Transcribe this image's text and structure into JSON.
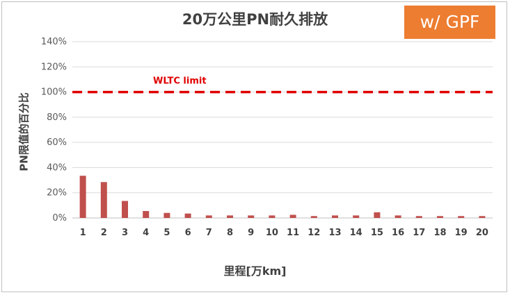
{
  "chart_data": {
    "type": "bar",
    "title": "20万公里PN耐久排放",
    "badge": "w/ GPF",
    "xlabel": "里程[万km]",
    "ylabel": "PN限值的百分比",
    "categories": [
      "1",
      "2",
      "3",
      "4",
      "5",
      "6",
      "7",
      "8",
      "9",
      "10",
      "11",
      "12",
      "13",
      "14",
      "15",
      "16",
      "17",
      "18",
      "19",
      "20"
    ],
    "values": [
      33.5,
      28.5,
      13.5,
      5.5,
      4,
      3.5,
      2,
      2,
      2,
      2,
      2.5,
      1.5,
      2,
      2,
      4.5,
      2,
      1.5,
      1.5,
      1.5,
      1.5
    ],
    "ylim": [
      0,
      140
    ],
    "yticks": [
      0,
      20,
      40,
      60,
      80,
      100,
      120,
      140
    ],
    "ytick_suffix": "%",
    "limit_line": {
      "label": "WLTC limit",
      "value": 100,
      "color": "#e00000",
      "style": "dashed"
    },
    "bar_color": "#c0504d",
    "grid": "horizontal"
  }
}
